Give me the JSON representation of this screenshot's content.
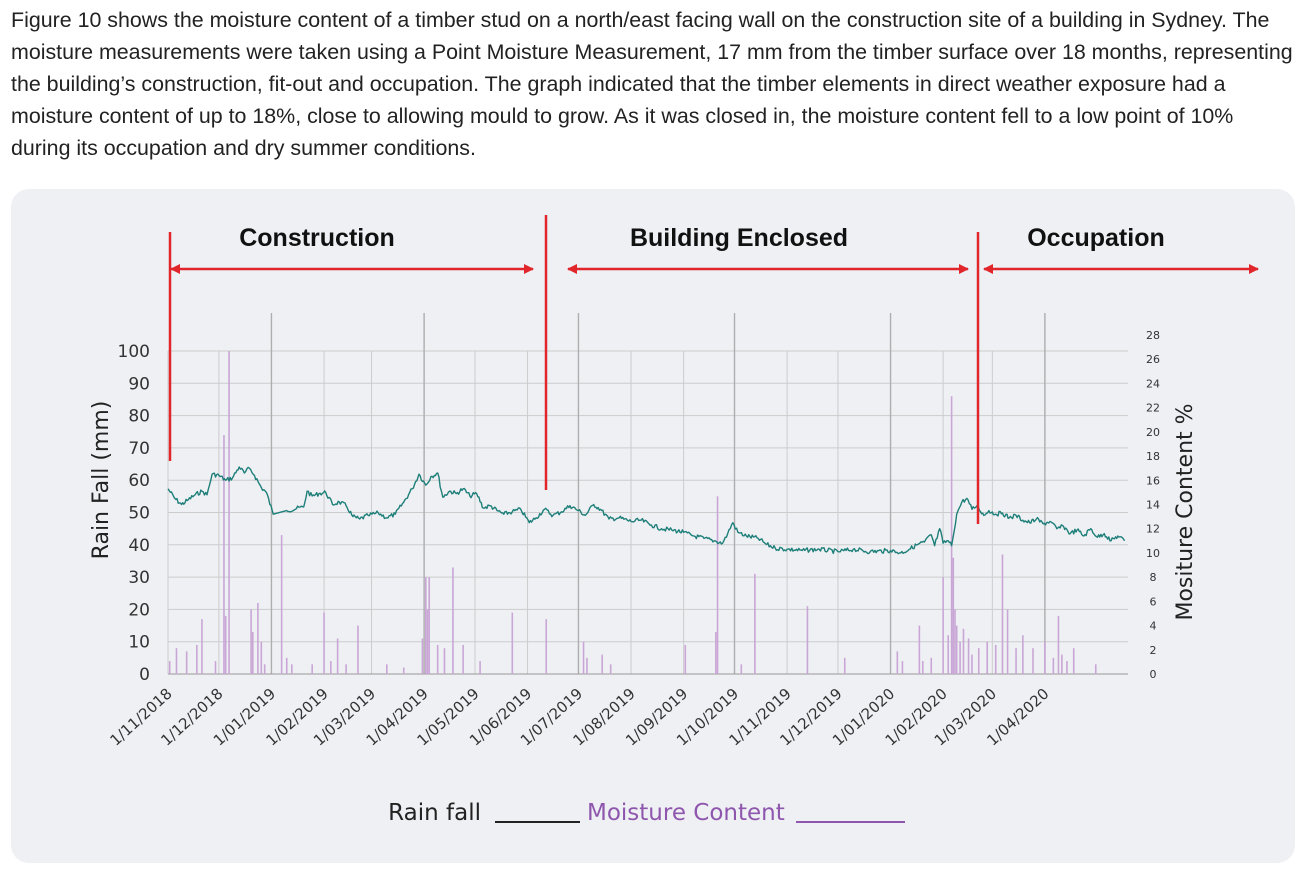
{
  "intro_text": "Figure 10 shows the moisture content of a timber stud on a north/east facing wall on the construction site of a building in Sydney. The moisture measurements were taken using a Point Moisture Measurement, 17 mm from the timber surface over 18 months, representing the building’s construction, fit-out and occupation. The graph indicated that the timber elements in direct weather exposure had a moisture content of up to 18%, close to allowing mould to grow. As it was closed in, the moisture content fell to a low point of 10% during its occupation and dry summer conditions.",
  "colors": {
    "panel": "#eef0f4",
    "phase_markers": "#e0262b",
    "moisture_line": "#1e7f79",
    "rain_bars": "#c9a6d6",
    "grid": "#cccccc"
  },
  "chart_data": {
    "type": "line",
    "title": "",
    "xlabel": "",
    "ylabel_left": "Rain Fall (mm)",
    "ylabel_right": "Mositure Content %",
    "ylim_left": [
      0,
      100
    ],
    "ylim_right": [
      0,
      28
    ],
    "y_ticks_left": [
      0,
      10,
      20,
      30,
      40,
      50,
      60,
      70,
      80,
      90,
      100
    ],
    "y_ticks_right": [
      0,
      2,
      4,
      6,
      8,
      10,
      12,
      14,
      16,
      18,
      20,
      22,
      24,
      26,
      28
    ],
    "x_tick_labels": [
      "1/11/2018",
      "1/12/2018",
      "1/01/2019",
      "1/02/2019",
      "1/03/2019",
      "1/04/2019",
      "1/05/2019",
      "1/06/2019",
      "1/07/2019",
      "1/08/2019",
      "1/09/2019",
      "1/10/2019",
      "1/11/2019",
      "1/12/2019",
      "1/01/2020",
      "1/02/2020",
      "1/03/2020",
      "1/04/2020"
    ],
    "x_range": [
      "2018-11-01",
      "2020-05-20"
    ],
    "phases": [
      {
        "label": "Construction",
        "start": "2018-11-01",
        "end": "2019-05-31"
      },
      {
        "label": "Building Enclosed",
        "start": "2019-05-31",
        "end": "2020-01-30"
      },
      {
        "label": "Occupation",
        "start": "2020-01-30",
        "end": "2020-05-20"
      }
    ],
    "legend": [
      {
        "label": "Rain fall",
        "color": "#222222"
      },
      {
        "label": "Moisture Content",
        "color": "#8e56ad"
      }
    ],
    "series": [
      {
        "axis": "right",
        "points": [
          [
            "2018-11-01",
            15.3
          ],
          [
            "2018-11-05",
            14.5
          ],
          [
            "2018-11-09",
            14.0
          ],
          [
            "2018-11-13",
            14.4
          ],
          [
            "2018-11-17",
            14.8
          ],
          [
            "2018-11-21",
            15.1
          ],
          [
            "2018-11-24",
            14.8
          ],
          [
            "2018-11-27",
            16.5
          ],
          [
            "2018-12-01",
            16.4
          ],
          [
            "2018-12-05",
            16.0
          ],
          [
            "2018-12-09",
            16.2
          ],
          [
            "2018-12-13",
            17.1
          ],
          [
            "2018-12-16",
            16.6
          ],
          [
            "2018-12-19",
            17.0
          ],
          [
            "2018-12-22",
            16.4
          ],
          [
            "2018-12-26",
            15.4
          ],
          [
            "2018-12-29",
            15.0
          ],
          [
            "2019-01-02",
            13.2
          ],
          [
            "2019-01-10",
            13.5
          ],
          [
            "2019-01-20",
            13.8
          ],
          [
            "2019-01-22",
            15.1
          ],
          [
            "2019-01-25",
            14.7
          ],
          [
            "2019-01-29",
            14.9
          ],
          [
            "2019-02-02",
            15.0
          ],
          [
            "2019-02-06",
            14.0
          ],
          [
            "2019-02-10",
            14.2
          ],
          [
            "2019-02-14",
            13.9
          ],
          [
            "2019-02-18",
            13.0
          ],
          [
            "2019-02-22",
            12.8
          ],
          [
            "2019-02-27",
            13.1
          ],
          [
            "2019-03-05",
            13.3
          ],
          [
            "2019-03-10",
            12.9
          ],
          [
            "2019-03-15",
            13.2
          ],
          [
            "2019-03-20",
            14.2
          ],
          [
            "2019-03-25",
            15.3
          ],
          [
            "2019-03-29",
            16.5
          ],
          [
            "2019-04-02",
            15.6
          ],
          [
            "2019-04-05",
            16.3
          ],
          [
            "2019-04-09",
            16.6
          ],
          [
            "2019-04-12",
            14.6
          ],
          [
            "2019-04-16",
            15.1
          ],
          [
            "2019-04-20",
            14.9
          ],
          [
            "2019-04-24",
            15.3
          ],
          [
            "2019-04-28",
            14.7
          ],
          [
            "2019-05-02",
            14.9
          ],
          [
            "2019-05-06",
            13.7
          ],
          [
            "2019-05-10",
            13.9
          ],
          [
            "2019-05-14",
            13.5
          ],
          [
            "2019-05-18",
            13.2
          ],
          [
            "2019-05-23",
            13.4
          ],
          [
            "2019-05-28",
            13.6
          ],
          [
            "2019-06-02",
            12.5
          ],
          [
            "2019-06-06",
            12.9
          ],
          [
            "2019-06-11",
            13.6
          ],
          [
            "2019-06-16",
            13.1
          ],
          [
            "2019-06-21",
            13.4
          ],
          [
            "2019-06-26",
            13.9
          ],
          [
            "2019-07-01",
            13.5
          ],
          [
            "2019-07-05",
            13.1
          ],
          [
            "2019-07-10",
            14.0
          ],
          [
            "2019-07-14",
            13.6
          ],
          [
            "2019-07-19",
            12.8
          ],
          [
            "2019-07-25",
            12.9
          ],
          [
            "2019-08-01",
            12.6
          ],
          [
            "2019-08-07",
            12.7
          ],
          [
            "2019-08-13",
            12.3
          ],
          [
            "2019-08-19",
            12.0
          ],
          [
            "2019-08-25",
            11.9
          ],
          [
            "2019-09-01",
            11.7
          ],
          [
            "2019-09-07",
            11.4
          ],
          [
            "2019-09-13",
            11.2
          ],
          [
            "2019-09-19",
            11.0
          ],
          [
            "2019-09-24",
            10.8
          ],
          [
            "2019-09-27",
            11.6
          ],
          [
            "2019-09-30",
            12.5
          ],
          [
            "2019-10-03",
            11.7
          ],
          [
            "2019-10-08",
            11.4
          ],
          [
            "2019-10-15",
            11.2
          ],
          [
            "2019-10-20",
            10.7
          ],
          [
            "2019-10-25",
            10.4
          ],
          [
            "2019-11-01",
            10.3
          ],
          [
            "2019-11-10",
            10.2
          ],
          [
            "2019-11-20",
            10.3
          ],
          [
            "2019-12-01",
            10.1
          ],
          [
            "2019-12-10",
            10.3
          ],
          [
            "2019-12-20",
            10.1
          ],
          [
            "2020-01-01",
            10.2
          ],
          [
            "2020-01-07",
            10.0
          ],
          [
            "2020-01-12",
            10.3
          ],
          [
            "2020-01-17",
            10.7
          ],
          [
            "2020-01-21",
            10.9
          ],
          [
            "2020-01-25",
            11.5
          ],
          [
            "2020-01-27",
            10.6
          ],
          [
            "2020-01-30",
            12.0
          ],
          [
            "2020-02-01",
            10.8
          ],
          [
            "2020-02-04",
            11.0
          ],
          [
            "2020-02-06",
            10.6
          ],
          [
            "2020-02-09",
            13.2
          ],
          [
            "2020-02-12",
            14.2
          ],
          [
            "2020-02-15",
            14.5
          ],
          [
            "2020-02-18",
            13.6
          ],
          [
            "2020-02-21",
            13.9
          ],
          [
            "2020-02-25",
            13.1
          ],
          [
            "2020-02-28",
            13.5
          ],
          [
            "2020-03-03",
            13.2
          ],
          [
            "2020-03-07",
            13.3
          ],
          [
            "2020-03-11",
            12.9
          ],
          [
            "2020-03-15",
            13.1
          ],
          [
            "2020-03-19",
            12.7
          ],
          [
            "2020-03-23",
            12.5
          ],
          [
            "2020-03-27",
            12.8
          ],
          [
            "2020-03-31",
            12.4
          ],
          [
            "2020-04-04",
            12.6
          ],
          [
            "2020-04-08",
            12.0
          ],
          [
            "2020-04-12",
            12.2
          ],
          [
            "2020-04-16",
            11.6
          ],
          [
            "2020-04-20",
            11.9
          ],
          [
            "2020-04-24",
            11.4
          ],
          [
            "2020-04-28",
            12.0
          ],
          [
            "2020-05-02",
            11.3
          ],
          [
            "2020-05-06",
            11.6
          ],
          [
            "2020-05-10",
            11.0
          ],
          [
            "2020-05-14",
            11.4
          ],
          [
            "2020-05-18",
            11.0
          ]
        ]
      },
      {
        "axis": "left",
        "bars": [
          [
            "2018-11-02",
            4
          ],
          [
            "2018-11-06",
            8
          ],
          [
            "2018-11-12",
            7
          ],
          [
            "2018-11-18",
            9
          ],
          [
            "2018-11-21",
            17
          ],
          [
            "2018-11-29",
            4
          ],
          [
            "2018-12-04",
            74
          ],
          [
            "2018-12-05",
            18
          ],
          [
            "2018-12-07",
            100
          ],
          [
            "2018-12-20",
            20
          ],
          [
            "2018-12-21",
            13
          ],
          [
            "2018-12-24",
            22
          ],
          [
            "2018-12-26",
            10
          ],
          [
            "2018-12-28",
            3
          ],
          [
            "2019-01-07",
            43
          ],
          [
            "2019-01-10",
            5
          ],
          [
            "2019-01-13",
            3
          ],
          [
            "2019-01-25",
            3
          ],
          [
            "2019-02-01",
            19
          ],
          [
            "2019-02-05",
            4
          ],
          [
            "2019-02-09",
            11
          ],
          [
            "2019-02-14",
            3
          ],
          [
            "2019-02-21",
            15
          ],
          [
            "2019-03-10",
            3
          ],
          [
            "2019-03-20",
            2
          ],
          [
            "2019-03-31",
            11
          ],
          [
            "2019-04-02",
            30
          ],
          [
            "2019-04-03",
            20
          ],
          [
            "2019-04-04",
            30
          ],
          [
            "2019-04-09",
            9
          ],
          [
            "2019-04-13",
            8
          ],
          [
            "2019-04-18",
            33
          ],
          [
            "2019-04-24",
            9
          ],
          [
            "2019-05-04",
            4
          ],
          [
            "2019-05-23",
            19
          ],
          [
            "2019-06-12",
            17
          ],
          [
            "2019-07-04",
            10
          ],
          [
            "2019-07-06",
            5
          ],
          [
            "2019-07-15",
            6
          ],
          [
            "2019-07-20",
            3
          ],
          [
            "2019-09-02",
            9
          ],
          [
            "2019-09-20",
            13
          ],
          [
            "2019-09-21",
            55
          ],
          [
            "2019-10-05",
            3
          ],
          [
            "2019-10-13",
            31
          ],
          [
            "2019-11-13",
            21
          ],
          [
            "2019-12-05",
            5
          ],
          [
            "2020-01-05",
            7
          ],
          [
            "2020-01-08",
            4
          ],
          [
            "2020-01-18",
            15
          ],
          [
            "2020-01-20",
            4
          ],
          [
            "2020-01-25",
            5
          ],
          [
            "2020-02-01",
            30
          ],
          [
            "2020-02-04",
            12
          ],
          [
            "2020-02-06",
            86
          ],
          [
            "2020-02-07",
            36
          ],
          [
            "2020-02-08",
            20
          ],
          [
            "2020-02-09",
            15
          ],
          [
            "2020-02-11",
            10
          ],
          [
            "2020-02-13",
            14
          ],
          [
            "2020-02-16",
            11
          ],
          [
            "2020-02-18",
            6
          ],
          [
            "2020-02-22",
            8
          ],
          [
            "2020-02-27",
            10
          ],
          [
            "2020-03-03",
            9
          ],
          [
            "2020-03-07",
            37
          ],
          [
            "2020-03-10",
            20
          ],
          [
            "2020-03-15",
            8
          ],
          [
            "2020-03-19",
            12
          ],
          [
            "2020-03-25",
            8
          ],
          [
            "2020-04-01",
            10
          ],
          [
            "2020-04-06",
            5
          ],
          [
            "2020-04-09",
            18
          ],
          [
            "2020-04-11",
            6
          ],
          [
            "2020-04-14",
            4
          ],
          [
            "2020-04-18",
            8
          ],
          [
            "2020-05-01",
            3
          ]
        ]
      }
    ]
  }
}
